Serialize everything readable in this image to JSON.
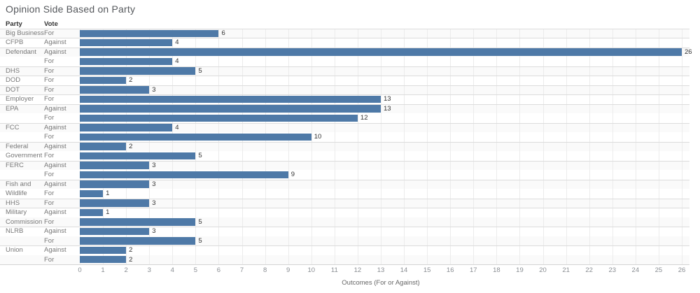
{
  "chart_data": {
    "type": "bar",
    "orientation": "horizontal",
    "title": "Opinion Side Based on Party",
    "xlabel": "Outcomes (For or Against)",
    "col_headers": [
      "Party",
      "Vote"
    ],
    "axis": {
      "min": 0,
      "max": 26,
      "tick_step": 1
    },
    "grid": true,
    "colors": {
      "bar": "#4e79a7"
    },
    "groups": [
      {
        "party": "Big Business",
        "bars": [
          {
            "vote": "For",
            "value": 6
          }
        ]
      },
      {
        "party": "CFPB",
        "bars": [
          {
            "vote": "Against",
            "value": 4
          }
        ]
      },
      {
        "party": "Defendant",
        "bars": [
          {
            "vote": "Against",
            "value": 26
          },
          {
            "vote": "For",
            "value": 4
          }
        ]
      },
      {
        "party": "DHS",
        "bars": [
          {
            "vote": "For",
            "value": 5
          }
        ]
      },
      {
        "party": "DOD",
        "bars": [
          {
            "vote": "For",
            "value": 2
          }
        ]
      },
      {
        "party": "DOT",
        "bars": [
          {
            "vote": "For",
            "value": 3
          }
        ]
      },
      {
        "party": "Employer",
        "bars": [
          {
            "vote": "For",
            "value": 13
          }
        ]
      },
      {
        "party": "EPA",
        "bars": [
          {
            "vote": "Against",
            "value": 13
          },
          {
            "vote": "For",
            "value": 12
          }
        ]
      },
      {
        "party": "FCC",
        "bars": [
          {
            "vote": "Against",
            "value": 4
          },
          {
            "vote": "For",
            "value": 10
          }
        ]
      },
      {
        "party": "Federal Government",
        "bars": [
          {
            "vote": "Against",
            "value": 2
          },
          {
            "vote": "For",
            "value": 5
          }
        ]
      },
      {
        "party": "FERC",
        "bars": [
          {
            "vote": "Against",
            "value": 3
          },
          {
            "vote": "For",
            "value": 9
          }
        ]
      },
      {
        "party": "Fish and Wildlife",
        "bars": [
          {
            "vote": "Against",
            "value": 3
          },
          {
            "vote": "For",
            "value": 1
          }
        ]
      },
      {
        "party": "HHS",
        "bars": [
          {
            "vote": "For",
            "value": 3
          }
        ]
      },
      {
        "party": "Military Commission",
        "bars": [
          {
            "vote": "Against",
            "value": 1
          },
          {
            "vote": "For",
            "value": 5
          }
        ]
      },
      {
        "party": "NLRB",
        "bars": [
          {
            "vote": "Against",
            "value": 3
          },
          {
            "vote": "For",
            "value": 5
          }
        ]
      },
      {
        "party": "Union",
        "bars": [
          {
            "vote": "Against",
            "value": 2
          },
          {
            "vote": "For",
            "value": 2
          }
        ]
      }
    ]
  }
}
